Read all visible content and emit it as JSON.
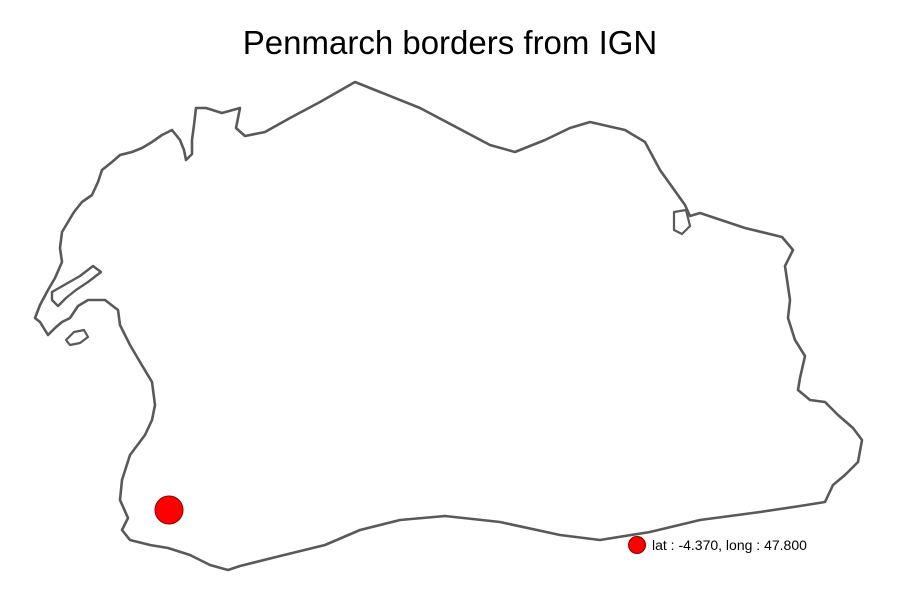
{
  "map": {
    "title": "Penmarch borders from IGN",
    "border_color": "#595959",
    "fill_color": "#ffffff",
    "marker": {
      "name": "location-marker",
      "lat": -4.37,
      "long": 47.8,
      "color": "#ff0000"
    },
    "legend": {
      "label": "lat : -4.370, long : 47.800",
      "color": "#ff0000"
    }
  }
}
